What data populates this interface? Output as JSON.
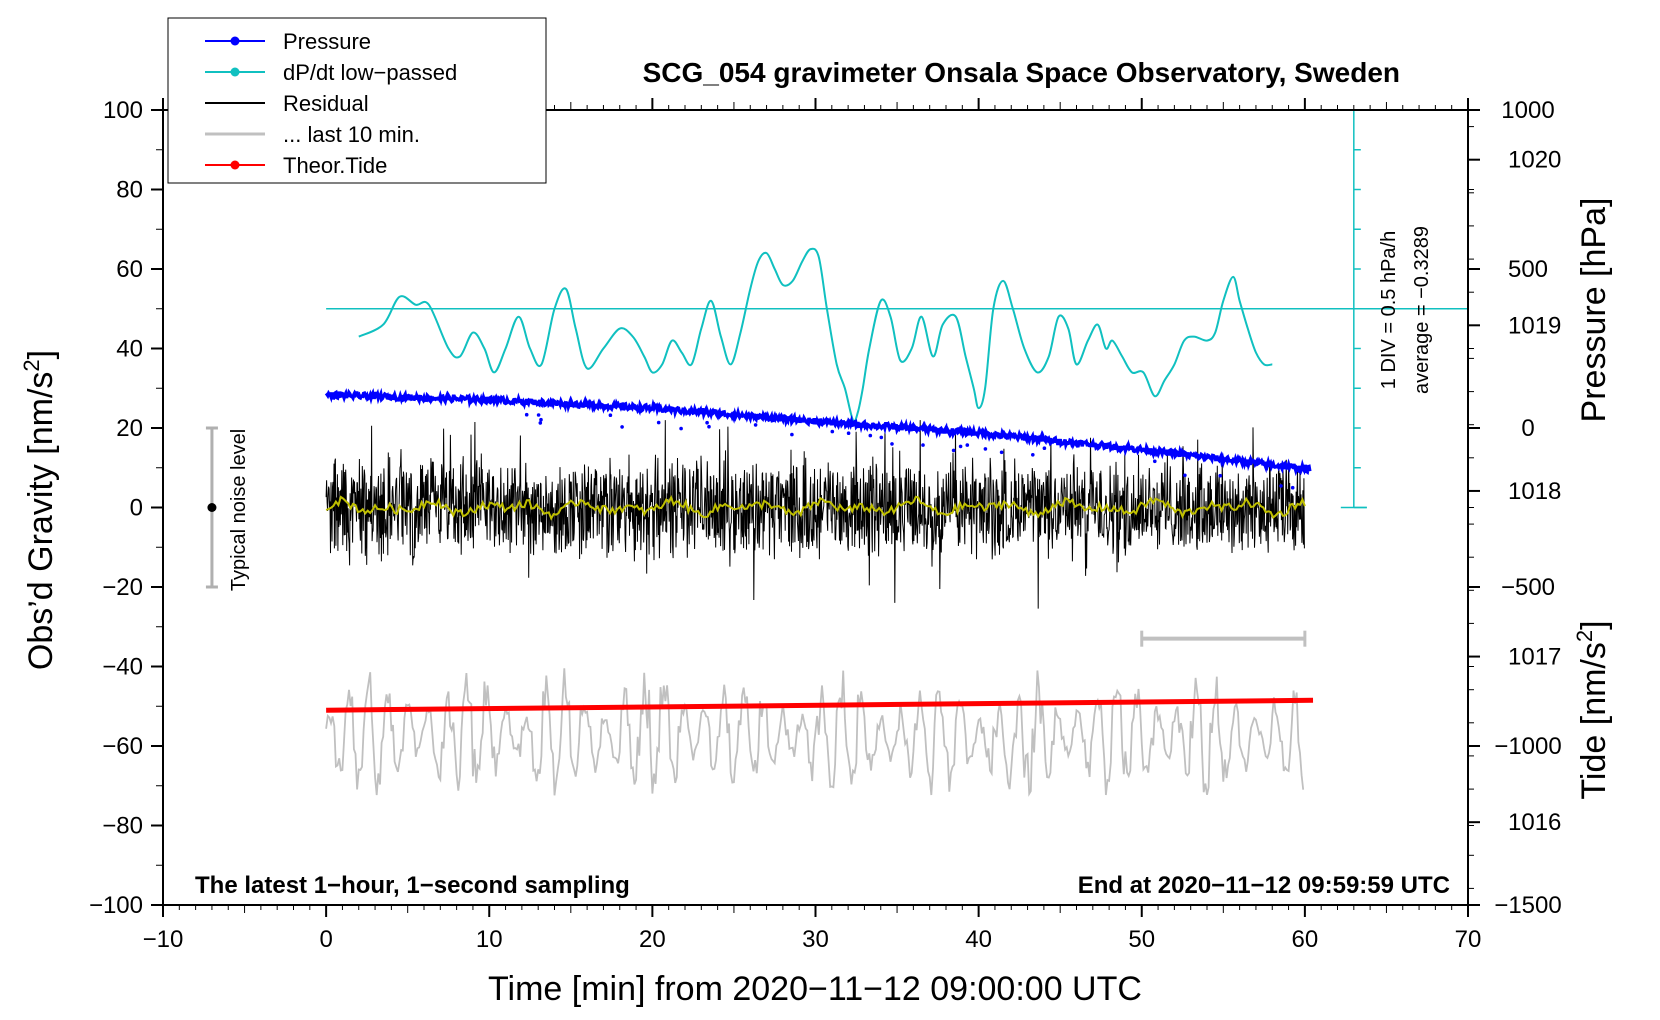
{
  "chart_data": {
    "type": "line",
    "title": "SCG_054 gravimeter Onsala Space Observatory, Sweden",
    "xlabel": "Time [min] from 2020−11−12 09:00:00 UTC",
    "ylabel_left": "Obs’d Gravity [nm/s²]",
    "ylabel_left_main": "Obs’d Gravity [nm/s",
    "ylabel_left_sup": "2",
    "ylabel_left_end": "]",
    "ylabel_right_pressure": "Pressure [hPa]",
    "ylabel_right_tide": "Tide [nm/s²]",
    "ylabel_right_tide_main": "Tide [nm/s",
    "ylabel_right_tide_sup": "2",
    "ylabel_right_tide_end": "]",
    "xlim": [
      -10,
      70
    ],
    "ylim_left": [
      -100,
      100
    ],
    "x_ticks": [
      "−10",
      "0",
      "10",
      "20",
      "30",
      "40",
      "50",
      "60",
      "70"
    ],
    "y_ticks_left": [
      "100",
      "80",
      "60",
      "40",
      "20",
      "0",
      "−20",
      "−40",
      "−60",
      "−80",
      "−100"
    ],
    "y_ticks_pressure": [
      "1020",
      "1019",
      "1018",
      "1017",
      "1016"
    ],
    "y_ticks_tide": [
      "1000",
      "500",
      "0",
      "−500",
      "−1000",
      "−1500"
    ],
    "pressure_axis": {
      "range_hpa": [
        1015.5,
        1020.3
      ]
    },
    "tide_axis": {
      "range": [
        -1500,
        1000
      ]
    },
    "legend": {
      "location": "top-left",
      "entries": [
        "Pressure",
        "dP/dt low−passed",
        "Residual",
        "... last 10 min.",
        "Theor.Tide"
      ]
    },
    "series": [
      {
        "name": "Pressure",
        "color": "#0000ff",
        "axis": "pressure",
        "x": [
          0,
          10,
          20,
          30,
          40,
          50,
          60.3
        ],
        "values": [
          1018.58,
          1018.55,
          1018.5,
          1018.42,
          1018.35,
          1018.25,
          1018.13
        ]
      },
      {
        "name": "dP/dt low−passed",
        "color": "#10c0c0",
        "axis": "gravity",
        "x": [
          2,
          3.5,
          4.5,
          5.5,
          6.3,
          7.5,
          8.2,
          9,
          9.7,
          10.3,
          11,
          11.8,
          12.5,
          13.2,
          14,
          14.7,
          15.3,
          16,
          17,
          18,
          18.8,
          19.5,
          20,
          20.6,
          21.2,
          21.8,
          22.4,
          23,
          23.6,
          24.2,
          24.8,
          25.4,
          26,
          26.5,
          27,
          27.5,
          28,
          28.6,
          29.2,
          29.7,
          30.2,
          30.7,
          31.3,
          31.8,
          32.3,
          32.6,
          32.9,
          33.3,
          34,
          34.6,
          35.2,
          35.9,
          36.5,
          37.2,
          37.8,
          38.6,
          39.2,
          39.7,
          40,
          40.4,
          40.9,
          41.5,
          42.1,
          42.8,
          43.6,
          44.3,
          44.9,
          45.5,
          46,
          46.7,
          47.3,
          47.8,
          48.2,
          48.8,
          49.4,
          50.1,
          50.8,
          51.4,
          52,
          52.6,
          53.2,
          54,
          54.5,
          55,
          55.6,
          56,
          56.5,
          57,
          57.5,
          58
        ],
        "values": [
          43,
          46,
          53,
          51,
          51,
          40,
          38,
          44,
          40,
          34,
          40,
          48,
          40,
          36,
          50,
          55,
          45,
          35,
          40,
          45,
          43,
          38,
          34,
          36,
          42,
          39,
          36,
          45,
          52,
          43,
          36,
          44,
          55,
          62,
          64,
          60,
          56,
          57,
          62,
          65,
          63,
          50,
          36,
          30,
          22,
          24,
          30,
          40,
          52,
          48,
          37,
          40,
          48,
          38,
          46,
          48,
          38,
          30,
          25,
          30,
          50,
          57,
          50,
          40,
          34,
          38,
          48,
          45,
          36,
          42,
          46,
          40,
          42,
          38,
          34,
          34,
          28,
          32,
          36,
          42,
          43,
          42,
          44,
          52,
          58,
          52,
          45,
          39,
          36,
          36
        ]
      },
      {
        "name": "Residual",
        "color": "#000000",
        "axis": "gravity",
        "x_range": [
          0,
          60
        ],
        "amplitude_approx": 25
      },
      {
        "name": "Residual (smoothed)",
        "color": "#c0c000",
        "axis": "gravity",
        "x_range": [
          0,
          60
        ],
        "amplitude_approx": 3
      },
      {
        "name": "... last 10 min.",
        "color": "#c0c0c0",
        "axis": "gravity",
        "x_range": [
          0,
          60
        ],
        "values_approx": [
          -60,
          -55
        ]
      },
      {
        "name": "Theor.Tide",
        "color": "#ff0000",
        "axis": "gravity",
        "x": [
          0,
          60.5
        ],
        "values": [
          -51,
          -48.5
        ]
      }
    ],
    "dpdt_reference": {
      "value": 50,
      "label_div": "1 DIV = 0.5 hPa/h",
      "label_avg": "average = −0.3289",
      "scale_x": 63
    },
    "noise_bar": {
      "x": -7,
      "center": 0,
      "half_range": 20,
      "label": "Typical noise level"
    },
    "ten_min_bar": {
      "x_start": 50,
      "x_end": 60,
      "y": -33
    },
    "annotation_left": "The latest 1−hour, 1−second sampling",
    "annotation_right": "End at 2020−11−12 09:59:59 UTC"
  }
}
